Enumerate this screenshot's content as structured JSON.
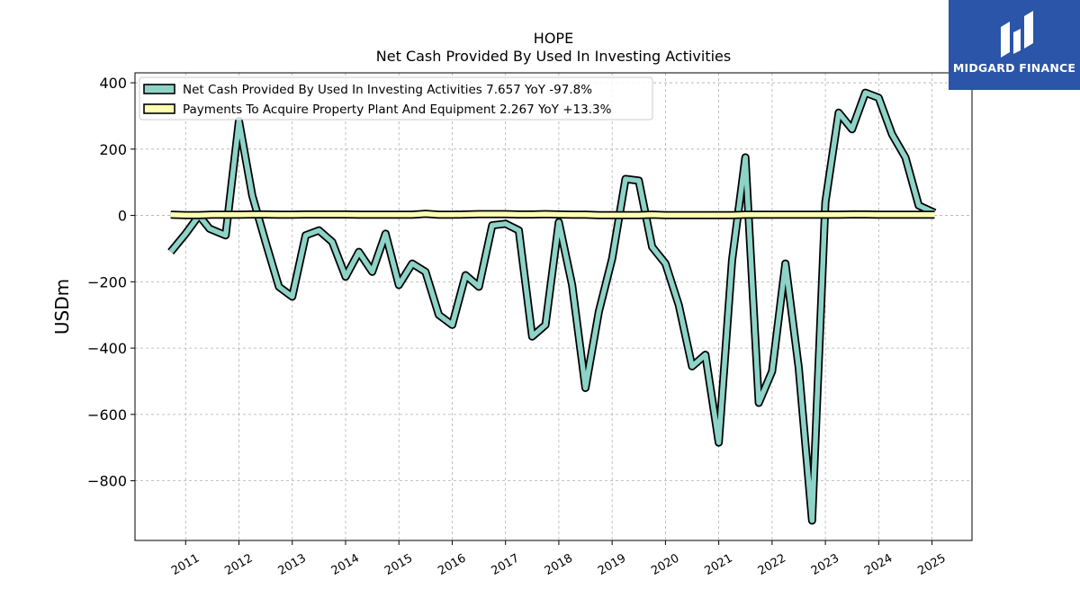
{
  "logo": {
    "text": "MIDGARD FINANCE",
    "color": "#2a55a8"
  },
  "chart_data": {
    "type": "line",
    "title": "HOPE",
    "subtitle": "Net Cash Provided By Used In Investing Activities",
    "xlabel": "",
    "ylabel": "USDm",
    "ylim": [
      -980,
      430
    ],
    "xlim": [
      2010.05,
      2025.75
    ],
    "yticks": [
      -800,
      -600,
      -400,
      -200,
      0,
      200,
      400
    ],
    "ytick_labels": [
      "−800",
      "−600",
      "−400",
      "−200",
      "0",
      "200",
      "400"
    ],
    "xticks": [
      2011,
      2012,
      2013,
      2014,
      2015,
      2016,
      2017,
      2018,
      2019,
      2020,
      2021,
      2022,
      2023,
      2024,
      2025
    ],
    "xtick_labels": [
      "2011",
      "2012",
      "2013",
      "2014",
      "2015",
      "2016",
      "2017",
      "2018",
      "2019",
      "2020",
      "2021",
      "2022",
      "2023",
      "2024",
      "2025"
    ],
    "grid": true,
    "legend_position": "top-left",
    "series": [
      {
        "name": "Net Cash Provided By Used In Investing Activities",
        "legend_label": "Net Cash Provided By Used In Investing Activities  7.657 YoY -97.8%",
        "color": "#8dd3c7",
        "x": [
          2010.72,
          2011.0,
          2011.25,
          2011.45,
          2011.75,
          2012.0,
          2012.25,
          2012.5,
          2012.75,
          2013.0,
          2013.25,
          2013.5,
          2013.75,
          2014.0,
          2014.25,
          2014.5,
          2014.75,
          2015.0,
          2015.25,
          2015.5,
          2015.75,
          2016.0,
          2016.25,
          2016.5,
          2016.75,
          2017.0,
          2017.25,
          2017.5,
          2017.75,
          2018.0,
          2018.25,
          2018.5,
          2018.75,
          2019.0,
          2019.25,
          2019.5,
          2019.75,
          2020.0,
          2020.25,
          2020.5,
          2020.75,
          2021.0,
          2021.25,
          2021.5,
          2021.75,
          2022.0,
          2022.25,
          2022.5,
          2022.75,
          2023.0,
          2023.25,
          2023.5,
          2023.75,
          2024.0,
          2024.25,
          2024.5,
          2024.75,
          2025.05
        ],
        "y": [
          -110,
          -55,
          0,
          -40,
          -60,
          285,
          60,
          -80,
          -215,
          -245,
          -60,
          -45,
          -80,
          -185,
          -110,
          -170,
          -55,
          -210,
          -145,
          -170,
          -300,
          -330,
          -180,
          -215,
          -30,
          -25,
          -45,
          -365,
          -330,
          -20,
          -210,
          -520,
          -290,
          -130,
          110,
          105,
          -95,
          -145,
          -270,
          -455,
          -420,
          -685,
          -135,
          175,
          -565,
          -470,
          -145,
          -460,
          -920,
          40,
          310,
          260,
          370,
          355,
          245,
          175,
          30,
          8
        ]
      },
      {
        "name": "Payments To Acquire Property Plant And Equipment",
        "legend_label": "Payments To Acquire Property Plant And Equipment  2.267 YoY +13.3%",
        "color": "#ffffb3",
        "x": [
          2010.72,
          2011.0,
          2011.25,
          2011.5,
          2011.75,
          2012.0,
          2012.25,
          2012.5,
          2012.75,
          2013.0,
          2013.25,
          2013.5,
          2013.75,
          2014.0,
          2014.25,
          2014.5,
          2014.75,
          2015.0,
          2015.25,
          2015.5,
          2015.75,
          2016.0,
          2016.25,
          2016.5,
          2016.75,
          2017.0,
          2017.25,
          2017.5,
          2017.75,
          2018.0,
          2018.25,
          2018.5,
          2018.75,
          2019.0,
          2019.25,
          2019.5,
          2019.75,
          2020.0,
          2020.25,
          2020.5,
          2020.75,
          2021.0,
          2021.25,
          2021.5,
          2021.75,
          2022.0,
          2022.25,
          2022.5,
          2022.75,
          2023.0,
          2023.25,
          2023.5,
          2023.75,
          2024.0,
          2024.25,
          2024.5,
          2024.75,
          2025.05
        ],
        "y": [
          2,
          1,
          1,
          2,
          2,
          2,
          3,
          3,
          2,
          2,
          3,
          3,
          3,
          3,
          2,
          2,
          2,
          2,
          2,
          5,
          2,
          2,
          3,
          4,
          4,
          4,
          3,
          3,
          4,
          3,
          2,
          2,
          1,
          1,
          1,
          1,
          2,
          1,
          1,
          1,
          1,
          1,
          1,
          2,
          2,
          2,
          2,
          2,
          2,
          2,
          2,
          3,
          3,
          2,
          2,
          2,
          2,
          2
        ]
      }
    ]
  }
}
